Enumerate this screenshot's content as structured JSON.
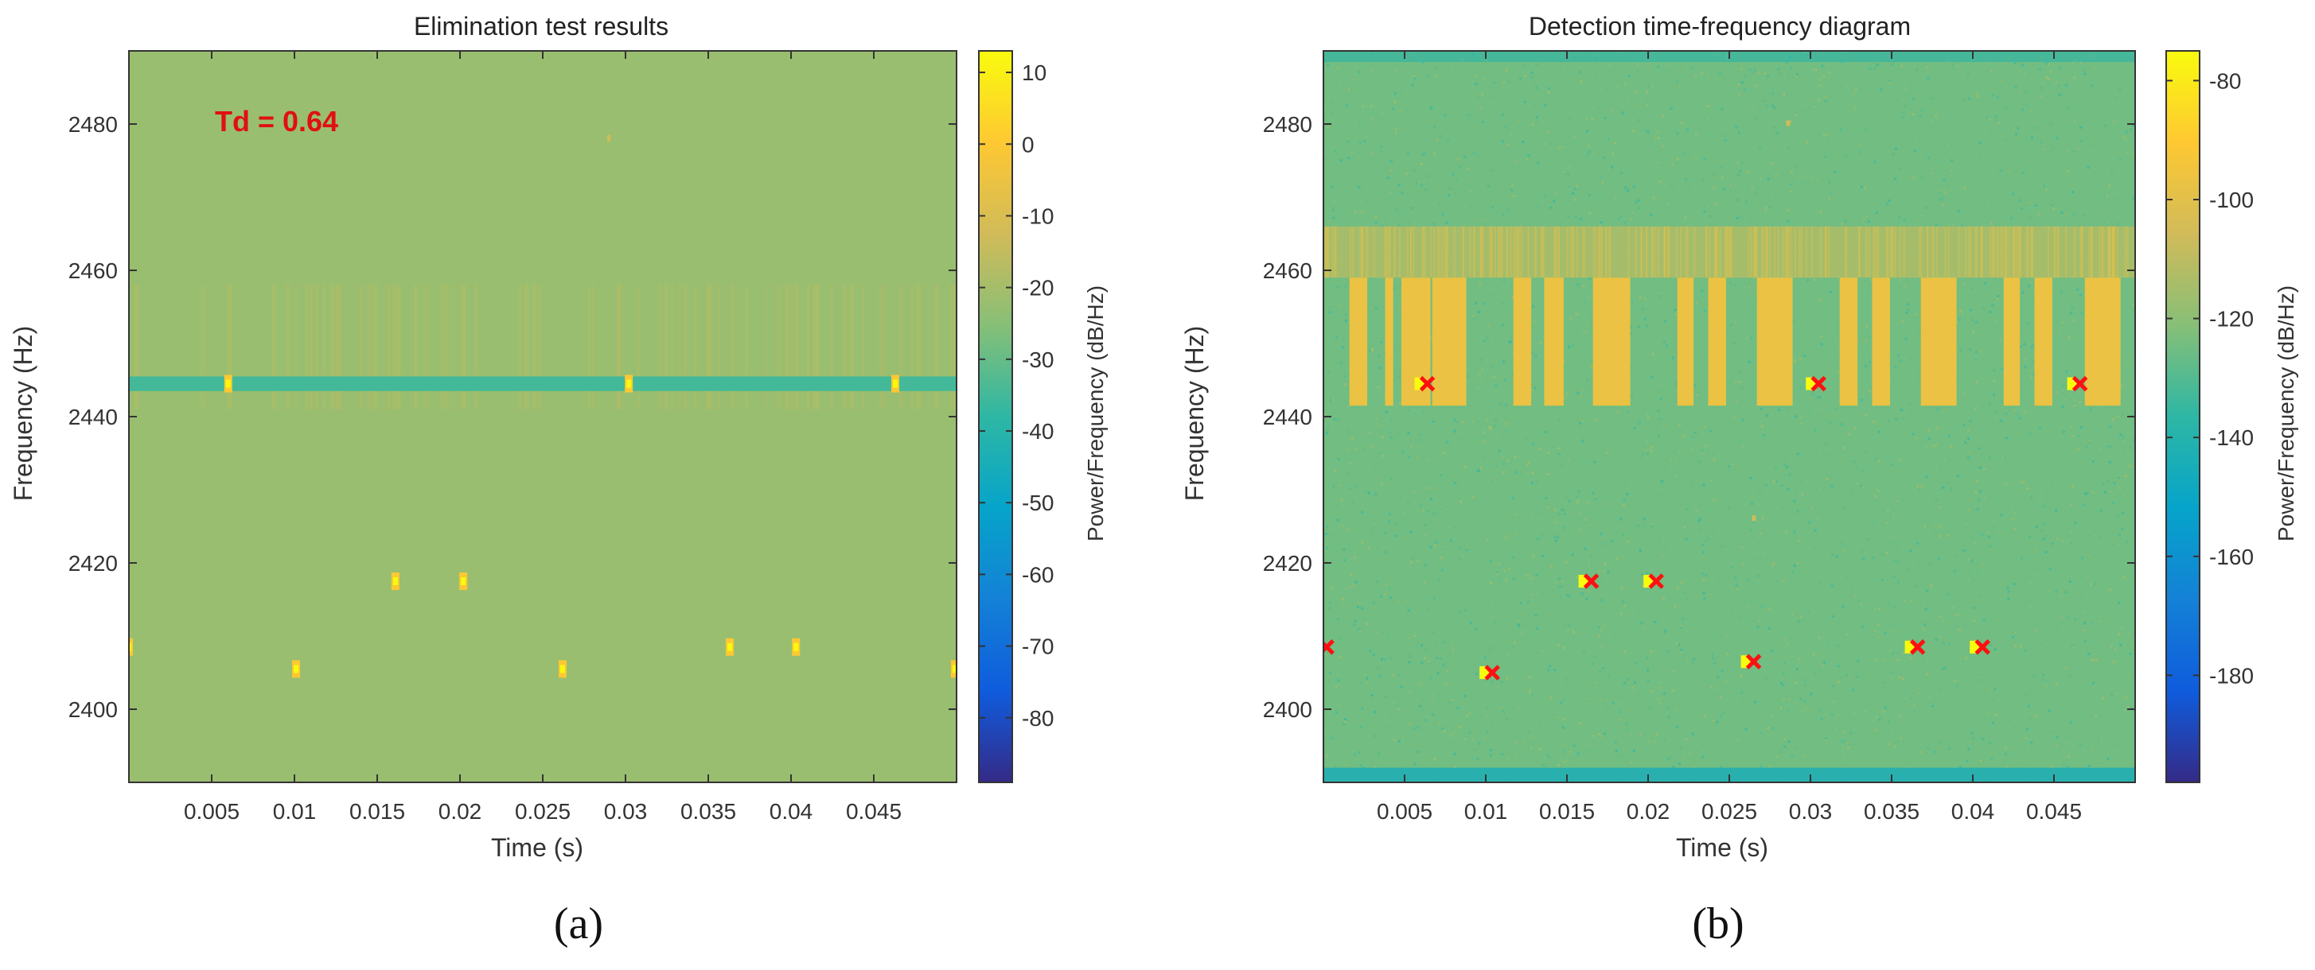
{
  "chart_data": [
    {
      "id": "a",
      "type": "heatmap",
      "title": "Elimination test results",
      "xlabel": "Time (s)",
      "ylabel": "Frequency (Hz)",
      "xlim": [
        0,
        0.05
      ],
      "ylim": [
        2390,
        2490
      ],
      "xticks": [
        "0.005",
        "0.01",
        "0.015",
        "0.02",
        "0.025",
        "0.03",
        "0.035",
        "0.04",
        "0.045"
      ],
      "xtick_values": [
        0.005,
        0.01,
        0.015,
        0.02,
        0.025,
        0.03,
        0.035,
        0.04,
        0.045
      ],
      "yticks": [
        "2400",
        "2420",
        "2440",
        "2460",
        "2480"
      ],
      "ytick_values": [
        2400,
        2420,
        2440,
        2460,
        2480
      ],
      "colorbar": {
        "label": "Power/Frequency (dB/Hz)",
        "range": [
          -89,
          13
        ],
        "ticks": [
          "10",
          "0",
          "-10",
          "-20",
          "-30",
          "-40",
          "-50",
          "-60",
          "-70",
          "-80"
        ],
        "tick_values": [
          10,
          0,
          -10,
          -20,
          -30,
          -40,
          -50,
          -60,
          -70,
          -80
        ]
      },
      "annotation": "Td = 0.64",
      "background_level_db": -22,
      "band": {
        "freq_low": 2443.5,
        "freq_high": 2445.5,
        "level_db": -35
      },
      "faint_bursts": {
        "freq_low": 2441,
        "freq_high": 2458,
        "level_db": -18
      },
      "hot_points": [
        {
          "time": 0.0,
          "freq": 2408.5
        },
        {
          "time": 0.006,
          "freq": 2444.5
        },
        {
          "time": 0.0101,
          "freq": 2405.5
        },
        {
          "time": 0.0161,
          "freq": 2417.5
        },
        {
          "time": 0.0202,
          "freq": 2417.5
        },
        {
          "time": 0.0262,
          "freq": 2405.5
        },
        {
          "time": 0.0302,
          "freq": 2444.5
        },
        {
          "time": 0.0363,
          "freq": 2408.5
        },
        {
          "time": 0.0403,
          "freq": 2408.5
        },
        {
          "time": 0.0463,
          "freq": 2444.5
        },
        {
          "time": 0.0499,
          "freq": 2405.5
        }
      ],
      "caption": "(a)"
    },
    {
      "id": "b",
      "type": "heatmap",
      "title": "Detection time-frequency diagram",
      "xlabel": "Time (s)",
      "ylabel": "Frequency (Hz)",
      "xlim": [
        0,
        0.05
      ],
      "ylim": [
        2390,
        2490
      ],
      "xticks": [
        "0.005",
        "0.01",
        "0.015",
        "0.02",
        "0.025",
        "0.03",
        "0.035",
        "0.04",
        "0.045"
      ],
      "xtick_values": [
        0.005,
        0.01,
        0.015,
        0.02,
        0.025,
        0.03,
        0.035,
        0.04,
        0.045
      ],
      "yticks": [
        "2400",
        "2420",
        "2440",
        "2460",
        "2480"
      ],
      "ytick_values": [
        2400,
        2420,
        2440,
        2460,
        2480
      ],
      "colorbar": {
        "label": "Power/Frequency (dB/Hz)",
        "range": [
          -198,
          -75
        ],
        "ticks": [
          "-80",
          "-100",
          "-120",
          "-140",
          "-160",
          "-180"
        ],
        "tick_values": [
          -80,
          -100,
          -120,
          -140,
          -160,
          -180
        ]
      },
      "background_level_db": -125,
      "horizontal_band": {
        "freq_low": 2459,
        "freq_high": 2466,
        "level_db": -113
      },
      "blocks": [
        {
          "t_start": 0.0016,
          "t_end": 0.0027,
          "freq_low": 2441.5,
          "freq_high": 2459
        },
        {
          "t_start": 0.0038,
          "t_end": 0.0043,
          "freq_low": 2441.5,
          "freq_high": 2459
        },
        {
          "t_start": 0.0048,
          "t_end": 0.0066,
          "freq_low": 2441.5,
          "freq_high": 2459
        },
        {
          "t_start": 0.0067,
          "t_end": 0.0088,
          "freq_low": 2441.5,
          "freq_high": 2459
        },
        {
          "t_start": 0.0117,
          "t_end": 0.0128,
          "freq_low": 2441.5,
          "freq_high": 2459
        },
        {
          "t_start": 0.0136,
          "t_end": 0.0148,
          "freq_low": 2441.5,
          "freq_high": 2459
        },
        {
          "t_start": 0.0166,
          "t_end": 0.0189,
          "freq_low": 2441.5,
          "freq_high": 2459
        },
        {
          "t_start": 0.0218,
          "t_end": 0.0228,
          "freq_low": 2441.5,
          "freq_high": 2459
        },
        {
          "t_start": 0.0237,
          "t_end": 0.0248,
          "freq_low": 2441.5,
          "freq_high": 2459
        },
        {
          "t_start": 0.0267,
          "t_end": 0.0289,
          "freq_low": 2441.5,
          "freq_high": 2459
        },
        {
          "t_start": 0.0318,
          "t_end": 0.0329,
          "freq_low": 2441.5,
          "freq_high": 2459
        },
        {
          "t_start": 0.0338,
          "t_end": 0.0349,
          "freq_low": 2441.5,
          "freq_high": 2459
        },
        {
          "t_start": 0.0368,
          "t_end": 0.039,
          "freq_low": 2441.5,
          "freq_high": 2459
        },
        {
          "t_start": 0.0419,
          "t_end": 0.0429,
          "freq_low": 2441.5,
          "freq_high": 2459
        },
        {
          "t_start": 0.0438,
          "t_end": 0.0449,
          "freq_low": 2441.5,
          "freq_high": 2459
        },
        {
          "t_start": 0.0469,
          "t_end": 0.0491,
          "freq_low": 2441.5,
          "freq_high": 2459
        }
      ],
      "detections": [
        {
          "time": 0.0002,
          "freq": 2408.5
        },
        {
          "time": 0.0064,
          "freq": 2444.5
        },
        {
          "time": 0.0104,
          "freq": 2405
        },
        {
          "time": 0.0165,
          "freq": 2417.5
        },
        {
          "time": 0.0205,
          "freq": 2417.5
        },
        {
          "time": 0.0265,
          "freq": 2406.5
        },
        {
          "time": 0.0305,
          "freq": 2444.5
        },
        {
          "time": 0.0366,
          "freq": 2408.5
        },
        {
          "time": 0.0406,
          "freq": 2408.5
        },
        {
          "time": 0.0466,
          "freq": 2444.5
        }
      ],
      "caption": "(b)"
    }
  ],
  "colors": {
    "parula": [
      "#352a87",
      "#0f5cdd",
      "#1481d6",
      "#06a4ca",
      "#2eb7a4",
      "#87bf77",
      "#d1bb59",
      "#fec832",
      "#f9fb0e"
    ],
    "detection_marker": "#ff1010",
    "annotation": "#e01010"
  }
}
